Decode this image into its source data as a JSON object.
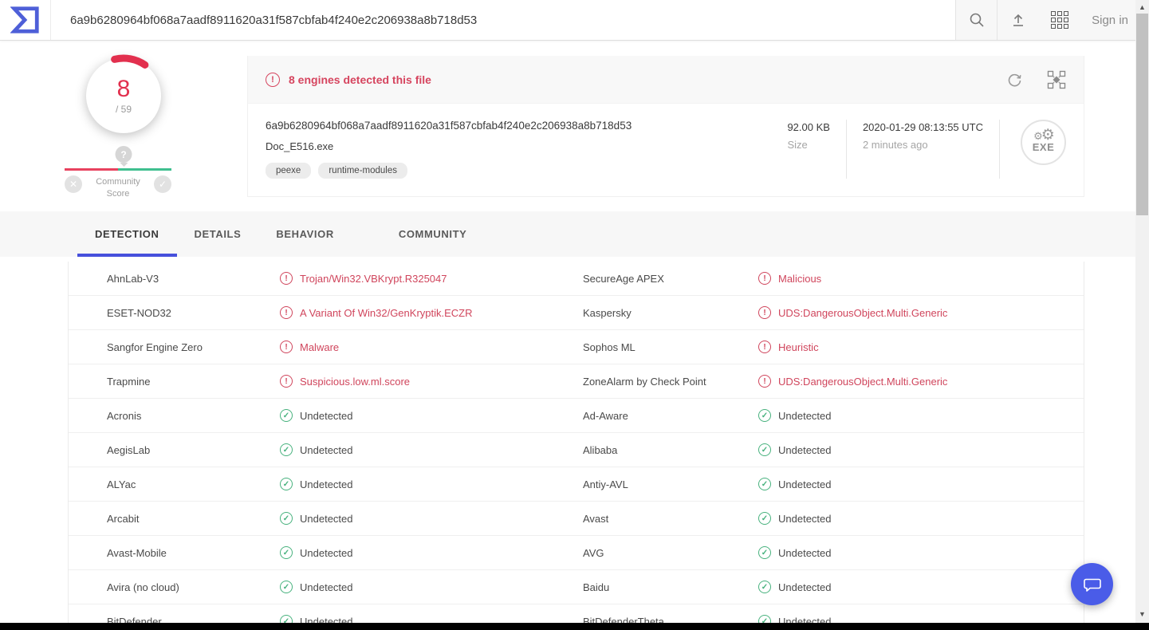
{
  "colors": {
    "brand_red": "#d0455e",
    "brand_green": "#48b27e",
    "accent_blue": "#4650dc",
    "fab_blue": "#4a5ce8"
  },
  "icons": {
    "logo": "virustotal-logo",
    "search": "magnifier",
    "upload": "tray-arrow-up",
    "apps": "grid-3x3",
    "reanalyze": "circular-arrow",
    "similarity": "graph-nodes",
    "alert": "exclamation-circle",
    "undetected": "check-circle",
    "detected": "exclamation-circle",
    "chat": "speech-bubble",
    "question_pin": "question-mark-pin",
    "vote_down": "x-circle",
    "vote_up": "check-circle"
  },
  "topbar": {
    "search_value": "6a9b6280964bf068a7aadf8911620a31f587cbfab4f240e2c206938a8b718d53",
    "signin_label": "Sign in"
  },
  "score": {
    "detections": "8",
    "total": "/ 59",
    "community_line1": "Community",
    "community_line2": "Score",
    "pin_glyph": "?",
    "vote_down_glyph": "✕",
    "vote_up_glyph": "✓"
  },
  "banner": {
    "alert_glyph": "!",
    "message": "8 engines detected this file"
  },
  "file": {
    "sha256": "6a9b6280964bf068a7aadf8911620a31f587cbfab4f240e2c206938a8b718d53",
    "name": "Doc_E516.exe",
    "tags": [
      "peexe",
      "runtime-modules"
    ],
    "size_value": "92.00 KB",
    "size_label": "Size",
    "date_value": "2020-01-29 08:13:55 UTC",
    "date_relative": "2 minutes ago",
    "type_badge": "EXE"
  },
  "tabs": [
    {
      "label": "DETECTION",
      "active": true,
      "gap": false
    },
    {
      "label": "DETAILS",
      "active": false,
      "gap": false
    },
    {
      "label": "BEHAVIOR",
      "active": false,
      "gap": false
    },
    {
      "label": "COMMUNITY",
      "active": false,
      "gap": true
    }
  ],
  "table": {
    "rows": [
      {
        "cols": [
          {
            "engine": "AhnLab-V3",
            "result": "Trojan/Win32.VBKrypt.R325047",
            "status": "bad"
          },
          {
            "engine": "SecureAge APEX",
            "result": "Malicious",
            "status": "bad"
          }
        ]
      },
      {
        "cols": [
          {
            "engine": "ESET-NOD32",
            "result": "A Variant Of Win32/GenKryptik.ECZR",
            "status": "bad"
          },
          {
            "engine": "Kaspersky",
            "result": "UDS:DangerousObject.Multi.Generic",
            "status": "bad"
          }
        ]
      },
      {
        "cols": [
          {
            "engine": "Sangfor Engine Zero",
            "result": "Malware",
            "status": "bad"
          },
          {
            "engine": "Sophos ML",
            "result": "Heuristic",
            "status": "bad"
          }
        ]
      },
      {
        "cols": [
          {
            "engine": "Trapmine",
            "result": "Suspicious.low.ml.score",
            "status": "bad"
          },
          {
            "engine": "ZoneAlarm by Check Point",
            "result": "UDS:DangerousObject.Multi.Generic",
            "status": "bad"
          }
        ]
      },
      {
        "cols": [
          {
            "engine": "Acronis",
            "result": "Undetected",
            "status": "ok"
          },
          {
            "engine": "Ad-Aware",
            "result": "Undetected",
            "status": "ok"
          }
        ]
      },
      {
        "cols": [
          {
            "engine": "AegisLab",
            "result": "Undetected",
            "status": "ok"
          },
          {
            "engine": "Alibaba",
            "result": "Undetected",
            "status": "ok"
          }
        ]
      },
      {
        "cols": [
          {
            "engine": "ALYac",
            "result": "Undetected",
            "status": "ok"
          },
          {
            "engine": "Antiy-AVL",
            "result": "Undetected",
            "status": "ok"
          }
        ]
      },
      {
        "cols": [
          {
            "engine": "Arcabit",
            "result": "Undetected",
            "status": "ok"
          },
          {
            "engine": "Avast",
            "result": "Undetected",
            "status": "ok"
          }
        ]
      },
      {
        "cols": [
          {
            "engine": "Avast-Mobile",
            "result": "Undetected",
            "status": "ok"
          },
          {
            "engine": "AVG",
            "result": "Undetected",
            "status": "ok"
          }
        ]
      },
      {
        "cols": [
          {
            "engine": "Avira (no cloud)",
            "result": "Undetected",
            "status": "ok"
          },
          {
            "engine": "Baidu",
            "result": "Undetected",
            "status": "ok"
          }
        ]
      },
      {
        "cols": [
          {
            "engine": "BitDefender",
            "result": "Undetected",
            "status": "ok"
          },
          {
            "engine": "BitDefenderTheta",
            "result": "Undetected",
            "status": "ok"
          }
        ]
      }
    ]
  }
}
